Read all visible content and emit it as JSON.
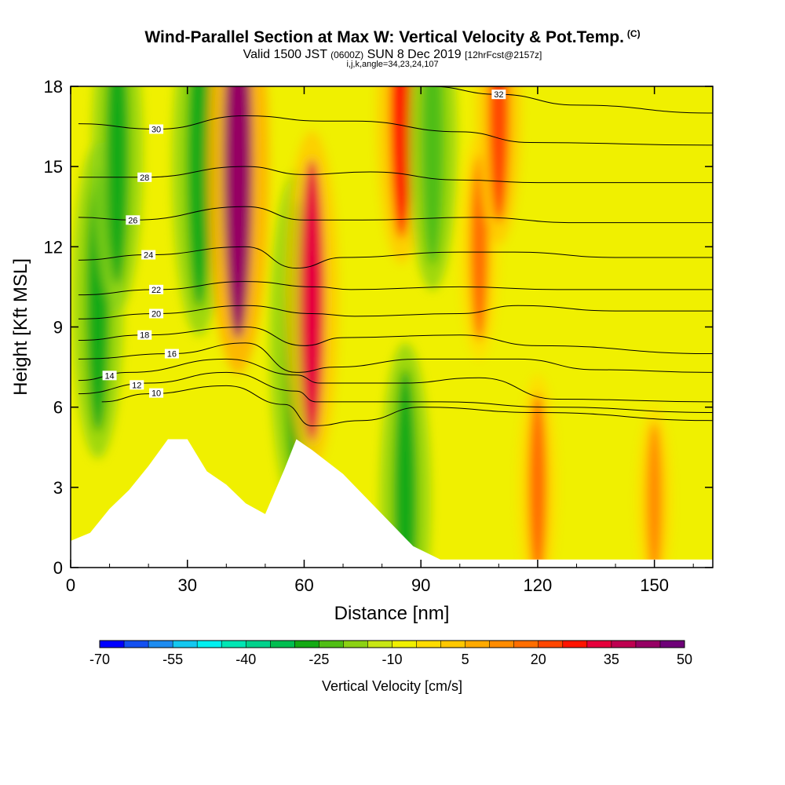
{
  "titles": {
    "main": "Wind-Parallel Section at Max W: Vertical Velocity & Pot.Temp.",
    "copyright": "(C)",
    "valid_prefix": "Valid 1500 JST",
    "valid_zulu": "(0600Z)",
    "valid_date": "SUN 8 Dec 2019",
    "valid_fcst": "[12hrFcst@2157z]",
    "indices": "i,j,k,angle=34,23,24,107"
  },
  "chart_data": {
    "type": "heatmap",
    "xlabel": "Distance [nm]",
    "ylabel": "Height [Kft MSL]",
    "xlim": [
      0,
      165
    ],
    "ylim": [
      0,
      18
    ],
    "x_ticks": [
      0,
      30,
      60,
      90,
      120,
      150
    ],
    "y_ticks": [
      0,
      3,
      6,
      9,
      12,
      15,
      18
    ],
    "colorbar": {
      "label": "Vertical Velocity [cm/s]",
      "tick_labels": [
        "-70",
        "-55",
        "-40",
        "-25",
        "-10",
        "5",
        "20",
        "35",
        "50"
      ],
      "colors": [
        "#0000ff",
        "#1450f0",
        "#1e8cf0",
        "#14c8f0",
        "#00f0f0",
        "#00e6b4",
        "#00d28c",
        "#00be50",
        "#14aa14",
        "#50be14",
        "#8cd214",
        "#c8e614",
        "#f0f000",
        "#ffdc00",
        "#ffc800",
        "#ffaa00",
        "#ff8c00",
        "#ff6e00",
        "#ff4600",
        "#ff1400",
        "#e6003c",
        "#be0050",
        "#960064",
        "#6e0078"
      ]
    },
    "terrain": [
      [
        0,
        1.0
      ],
      [
        5,
        1.3
      ],
      [
        10,
        2.2
      ],
      [
        15,
        2.9
      ],
      [
        20,
        3.8
      ],
      [
        25,
        4.8
      ],
      [
        30,
        4.8
      ],
      [
        35,
        3.6
      ],
      [
        40,
        3.1
      ],
      [
        45,
        2.4
      ],
      [
        50,
        2.0
      ],
      [
        55,
        3.7
      ],
      [
        58,
        4.8
      ],
      [
        62,
        4.4
      ],
      [
        70,
        3.5
      ],
      [
        80,
        2.0
      ],
      [
        88,
        0.8
      ],
      [
        95,
        0.3
      ],
      [
        165,
        0.3
      ]
    ],
    "updraft_cores": [
      {
        "x": 7,
        "z": 10.0,
        "w": -27
      },
      {
        "x": 12,
        "z": 15.5,
        "w": -27
      },
      {
        "x": 33,
        "z": 15.0,
        "w": -30
      },
      {
        "x": 43,
        "z": 15.0,
        "w": 40
      },
      {
        "x": 58,
        "z": 8.5,
        "w": -30
      },
      {
        "x": 62,
        "z": 10.0,
        "w": 30
      },
      {
        "x": 86,
        "z": 2.5,
        "w": -27
      },
      {
        "x": 85,
        "z": 17.0,
        "w": 25
      },
      {
        "x": 93,
        "z": 16.0,
        "w": -25
      },
      {
        "x": 105,
        "z": 12.0,
        "w": 15
      },
      {
        "x": 110,
        "z": 17.0,
        "w": 20
      },
      {
        "x": 120,
        "z": 3.0,
        "w": 15
      },
      {
        "x": 150,
        "z": 2.5,
        "w": 10
      }
    ],
    "isentropes": [
      {
        "label": "10",
        "label_x": 22,
        "pts": [
          [
            8,
            6.2
          ],
          [
            20,
            6.5
          ],
          [
            40,
            6.8
          ],
          [
            55,
            6.1
          ],
          [
            62,
            5.3
          ],
          [
            75,
            5.5
          ],
          [
            90,
            6.0
          ],
          [
            120,
            5.8
          ],
          [
            165,
            5.5
          ]
        ]
      },
      {
        "label": "12",
        "label_x": 17,
        "pts": [
          [
            2,
            6.5
          ],
          [
            20,
            6.9
          ],
          [
            40,
            7.3
          ],
          [
            58,
            6.6
          ],
          [
            63,
            6.2
          ],
          [
            72,
            6.2
          ],
          [
            95,
            6.2
          ],
          [
            124,
            6.0
          ],
          [
            165,
            5.8
          ]
        ]
      },
      {
        "label": "14",
        "label_x": 10,
        "pts": [
          [
            2,
            7.0
          ],
          [
            15,
            7.3
          ],
          [
            40,
            7.8
          ],
          [
            58,
            7.2
          ],
          [
            64,
            6.9
          ],
          [
            85,
            6.9
          ],
          [
            105,
            7.1
          ],
          [
            125,
            6.3
          ],
          [
            165,
            6.2
          ]
        ]
      },
      {
        "label": "16",
        "label_x": 26,
        "pts": [
          [
            2,
            7.8
          ],
          [
            26,
            8.0
          ],
          [
            45,
            8.4
          ],
          [
            58,
            7.3
          ],
          [
            68,
            7.5
          ],
          [
            90,
            7.8
          ],
          [
            115,
            7.8
          ],
          [
            135,
            7.4
          ],
          [
            165,
            7.3
          ]
        ]
      },
      {
        "label": "18",
        "label_x": 19,
        "pts": [
          [
            2,
            8.5
          ],
          [
            19,
            8.7
          ],
          [
            45,
            9.0
          ],
          [
            60,
            8.3
          ],
          [
            70,
            8.6
          ],
          [
            100,
            8.7
          ],
          [
            120,
            8.3
          ],
          [
            165,
            8.0
          ]
        ]
      },
      {
        "label": "20",
        "label_x": 22,
        "pts": [
          [
            2,
            9.3
          ],
          [
            22,
            9.5
          ],
          [
            45,
            9.8
          ],
          [
            62,
            9.5
          ],
          [
            73,
            9.4
          ],
          [
            100,
            9.5
          ],
          [
            115,
            9.8
          ],
          [
            140,
            9.6
          ],
          [
            165,
            9.6
          ]
        ]
      },
      {
        "label": "22",
        "label_x": 22,
        "pts": [
          [
            2,
            10.2
          ],
          [
            22,
            10.4
          ],
          [
            45,
            10.7
          ],
          [
            63,
            10.5
          ],
          [
            72,
            10.4
          ],
          [
            100,
            10.5
          ],
          [
            125,
            10.4
          ],
          [
            165,
            10.4
          ]
        ]
      },
      {
        "label": "24",
        "label_x": 20,
        "pts": [
          [
            2,
            11.5
          ],
          [
            20,
            11.7
          ],
          [
            45,
            12.0
          ],
          [
            58,
            11.2
          ],
          [
            70,
            11.6
          ],
          [
            100,
            11.8
          ],
          [
            114,
            11.8
          ],
          [
            140,
            11.6
          ],
          [
            165,
            11.6
          ]
        ]
      },
      {
        "label": "26",
        "label_x": 16,
        "pts": [
          [
            2,
            13.1
          ],
          [
            16,
            13.0
          ],
          [
            45,
            13.5
          ],
          [
            60,
            13.0
          ],
          [
            75,
            13.0
          ],
          [
            104,
            13.1
          ],
          [
            130,
            12.9
          ],
          [
            165,
            12.9
          ]
        ]
      },
      {
        "label": "28",
        "label_x": 19,
        "pts": [
          [
            2,
            14.6
          ],
          [
            19,
            14.6
          ],
          [
            45,
            15.0
          ],
          [
            60,
            14.7
          ],
          [
            77,
            14.8
          ],
          [
            100,
            14.5
          ],
          [
            120,
            14.4
          ],
          [
            165,
            14.4
          ]
        ]
      },
      {
        "label": "30",
        "label_x": 22,
        "pts": [
          [
            2,
            16.6
          ],
          [
            22,
            16.4
          ],
          [
            45,
            16.9
          ],
          [
            65,
            16.7
          ],
          [
            73,
            16.7
          ],
          [
            100,
            16.3
          ],
          [
            118,
            15.9
          ],
          [
            165,
            15.8
          ]
        ]
      },
      {
        "label": "32",
        "label_x": 110,
        "pts": [
          [
            92,
            18.0
          ],
          [
            110,
            17.7
          ],
          [
            130,
            17.3
          ],
          [
            165,
            17.0
          ]
        ]
      }
    ]
  }
}
